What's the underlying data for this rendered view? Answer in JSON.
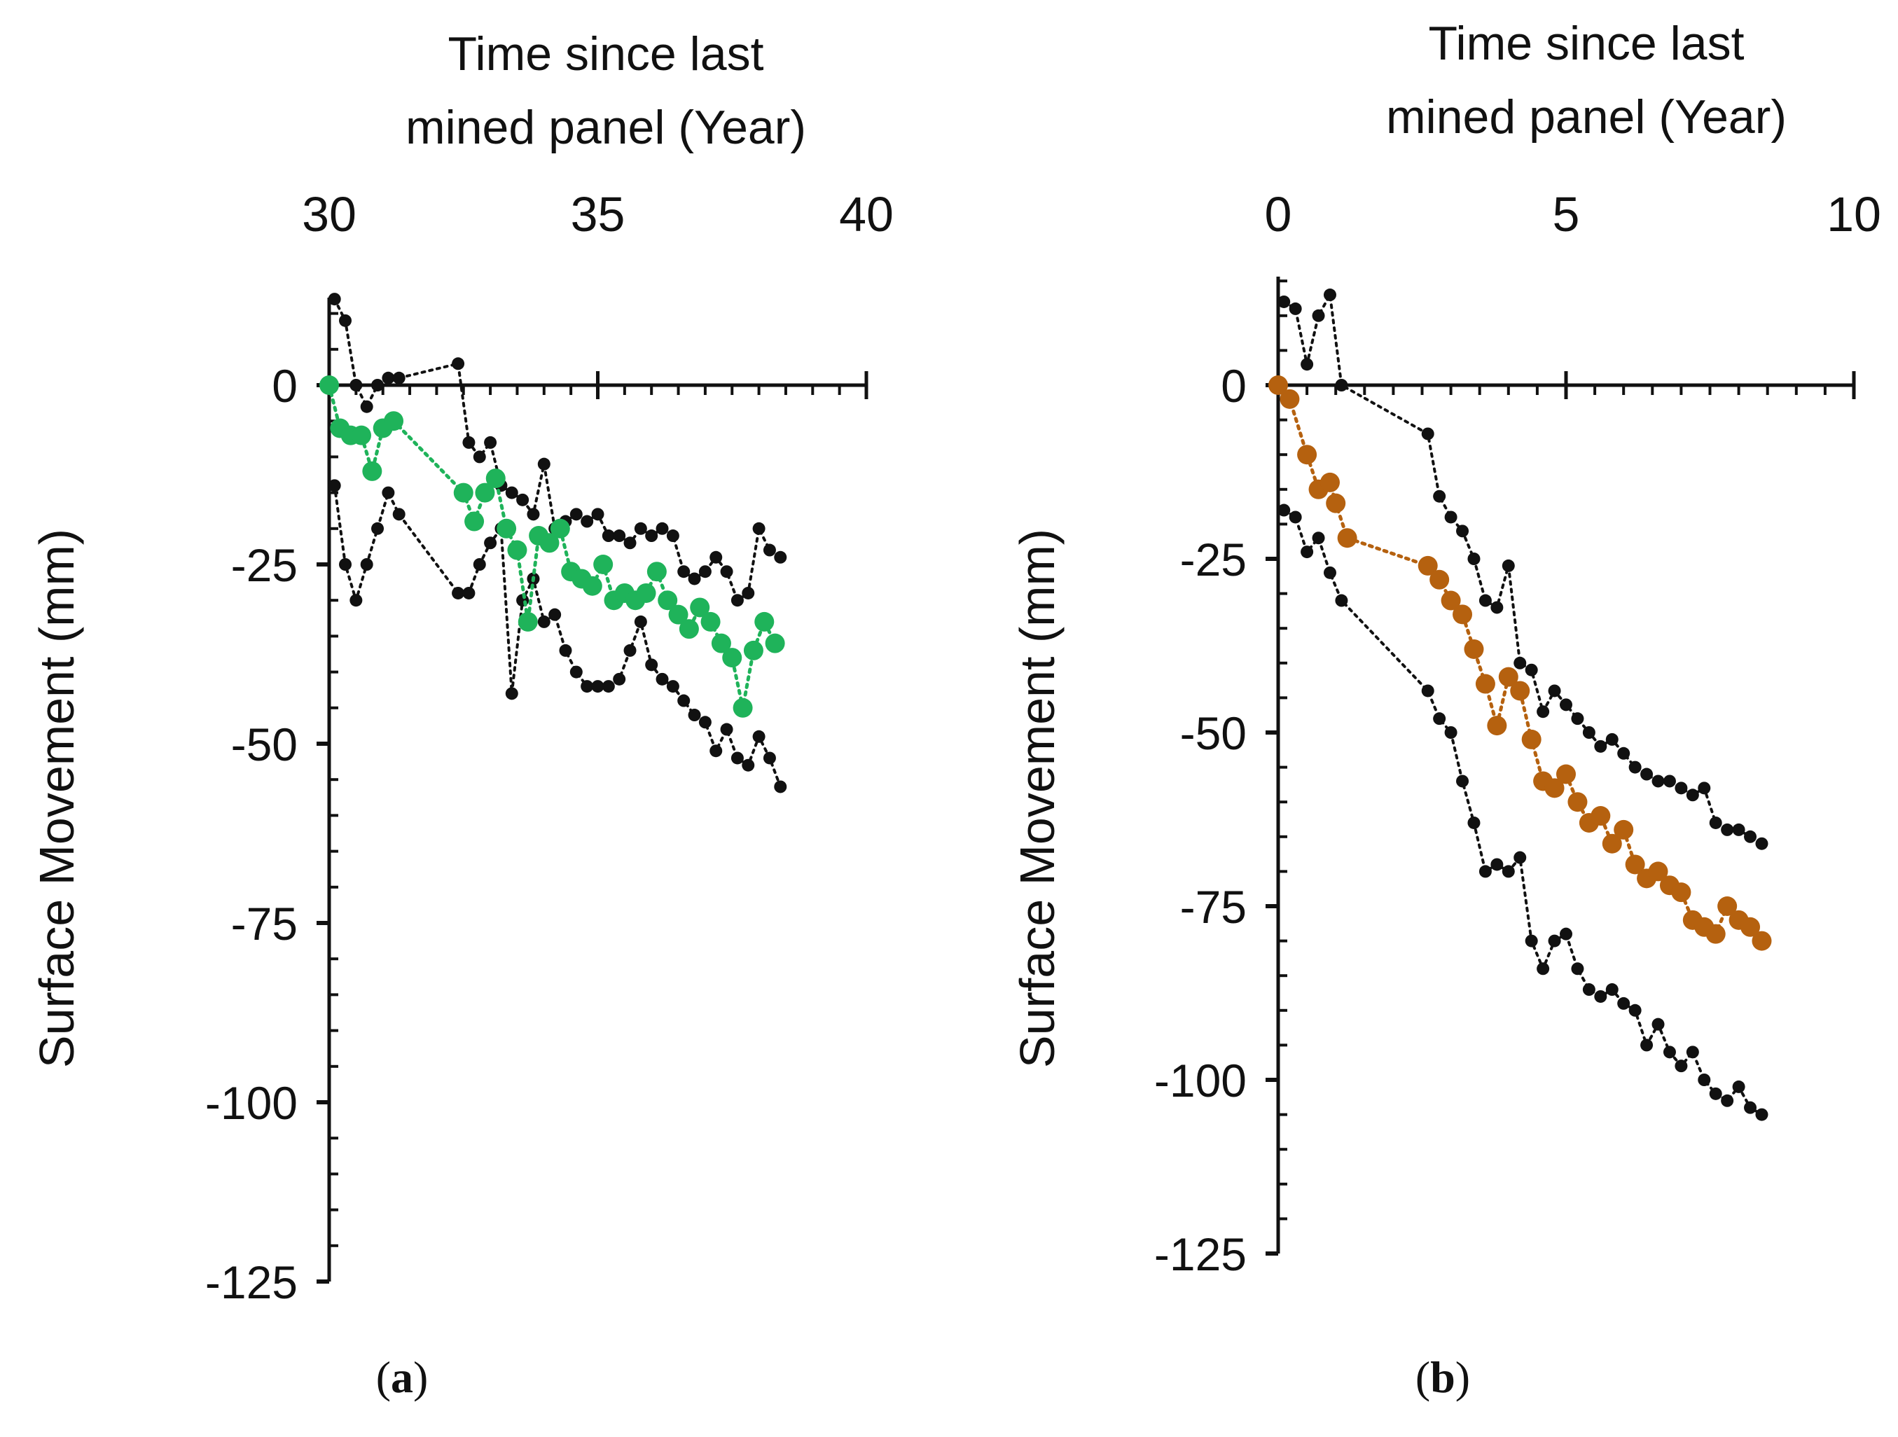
{
  "figure": {
    "caption_a_letter": "a",
    "caption_b_letter": "b"
  },
  "colors": {
    "axis": "#111111",
    "envelope": "#111111",
    "panel_a_series": "#1fb35a",
    "panel_b_series": "#b5610f"
  },
  "chart_data": [
    {
      "id": "a",
      "type": "line",
      "title": "",
      "xlabel_line1": "Time since last",
      "xlabel_line2": "mined panel (Year)",
      "ylabel": "Surface  Movement  (mm)",
      "xlim": [
        30,
        40
      ],
      "ylim": [
        -125,
        10
      ],
      "xticks": [
        30,
        35,
        40
      ],
      "xtick_labels": [
        "30",
        "35",
        "40"
      ],
      "yticks": [
        0,
        -25,
        -50,
        -75,
        -100,
        -125
      ],
      "ytick_labels": [
        "0",
        "-25",
        "-50",
        "-75",
        "-100",
        "-125"
      ],
      "series": [
        {
          "name": "upper envelope",
          "style": "black-dotted",
          "x": [
            30.1,
            30.3,
            30.5,
            30.7,
            30.9,
            31.1,
            31.3,
            32.4,
            32.6,
            32.8,
            33.0,
            33.2,
            33.4,
            33.6,
            33.8,
            34.0,
            34.2,
            34.4,
            34.6,
            34.8,
            35.0,
            35.2,
            35.4,
            35.6,
            35.8,
            36.0,
            36.2,
            36.4,
            36.6,
            36.8,
            37.0,
            37.2,
            37.4,
            37.6,
            37.8,
            38.0,
            38.2,
            38.4
          ],
          "y": [
            12,
            9,
            0,
            -3,
            0,
            1,
            1,
            3,
            -8,
            -10,
            -8,
            -14,
            -15,
            -16,
            -18,
            -11,
            -20,
            -19,
            -18,
            -19,
            -18,
            -21,
            -21,
            -22,
            -20,
            -21,
            -20,
            -21,
            -26,
            -27,
            -26,
            -24,
            -26,
            -30,
            -29,
            -20,
            -23,
            -24
          ]
        },
        {
          "name": "lower envelope",
          "style": "black-dotted",
          "x": [
            30.1,
            30.3,
            30.5,
            30.7,
            30.9,
            31.1,
            31.3,
            32.4,
            32.6,
            32.8,
            33.0,
            33.2,
            33.4,
            33.6,
            33.8,
            34.0,
            34.2,
            34.4,
            34.6,
            34.8,
            35.0,
            35.2,
            35.4,
            35.6,
            35.8,
            36.0,
            36.2,
            36.4,
            36.6,
            36.8,
            37.0,
            37.2,
            37.4,
            37.6,
            37.8,
            38.0,
            38.2,
            38.4
          ],
          "y": [
            -14,
            -25,
            -30,
            -25,
            -20,
            -15,
            -18,
            -29,
            -29,
            -25,
            -22,
            -20,
            -43,
            -30,
            -27,
            -33,
            -32,
            -37,
            -40,
            -42,
            -42,
            -42,
            -41,
            -37,
            -33,
            -39,
            -41,
            -42,
            -44,
            -46,
            -47,
            -51,
            -48,
            -52,
            -53,
            -49,
            -52,
            -56
          ]
        },
        {
          "name": "mean",
          "style": "color-dotted",
          "x": [
            30.0,
            30.2,
            30.4,
            30.6,
            30.8,
            31.0,
            31.2,
            32.5,
            32.7,
            32.9,
            33.1,
            33.3,
            33.5,
            33.7,
            33.9,
            34.1,
            34.3,
            34.5,
            34.7,
            34.9,
            35.1,
            35.3,
            35.5,
            35.7,
            35.9,
            36.1,
            36.3,
            36.5,
            36.7,
            36.9,
            37.1,
            37.3,
            37.5,
            37.7,
            37.9,
            38.1,
            38.3
          ],
          "y": [
            0,
            -6,
            -7,
            -7,
            -12,
            -6,
            -5,
            -15,
            -19,
            -15,
            -13,
            -20,
            -23,
            -33,
            -21,
            -22,
            -20,
            -26,
            -27,
            -28,
            -25,
            -30,
            -29,
            -30,
            -29,
            -26,
            -30,
            -32,
            -34,
            -31,
            -33,
            -36,
            -38,
            -45,
            -37,
            -33,
            -36
          ]
        }
      ]
    },
    {
      "id": "b",
      "type": "line",
      "title": "",
      "xlabel_line1": "Time since last",
      "xlabel_line2": "mined panel (Year)",
      "ylabel": "Surface  Movement  (mm)",
      "xlim": [
        0,
        10
      ],
      "ylim": [
        -125,
        15
      ],
      "xticks": [
        0,
        5,
        10
      ],
      "xtick_labels": [
        "0",
        "5",
        "10"
      ],
      "yticks": [
        0,
        -25,
        -50,
        -75,
        -100,
        -125
      ],
      "ytick_labels": [
        "0",
        "-25",
        "-50",
        "-75",
        "-100",
        "-125"
      ],
      "series": [
        {
          "name": "upper envelope",
          "style": "black-dotted",
          "x": [
            0.1,
            0.3,
            0.5,
            0.7,
            0.9,
            1.1,
            2.6,
            2.8,
            3.0,
            3.2,
            3.4,
            3.6,
            3.8,
            4.0,
            4.2,
            4.4,
            4.6,
            4.8,
            5.0,
            5.2,
            5.4,
            5.6,
            5.8,
            6.0,
            6.2,
            6.4,
            6.6,
            6.8,
            7.0,
            7.2,
            7.4,
            7.6,
            7.8,
            8.0,
            8.2,
            8.4
          ],
          "y": [
            12,
            11,
            3,
            10,
            13,
            0,
            -7,
            -16,
            -19,
            -21,
            -25,
            -31,
            -32,
            -26,
            -40,
            -41,
            -47,
            -44,
            -46,
            -48,
            -50,
            -52,
            -51,
            -53,
            -55,
            -56,
            -57,
            -57,
            -58,
            -59,
            -58,
            -63,
            -64,
            -64,
            -65,
            -66
          ]
        },
        {
          "name": "lower envelope",
          "style": "black-dotted",
          "x": [
            0.1,
            0.3,
            0.5,
            0.7,
            0.9,
            1.1,
            2.6,
            2.8,
            3.0,
            3.2,
            3.4,
            3.6,
            3.8,
            4.0,
            4.2,
            4.4,
            4.6,
            4.8,
            5.0,
            5.2,
            5.4,
            5.6,
            5.8,
            6.0,
            6.2,
            6.4,
            6.6,
            6.8,
            7.0,
            7.2,
            7.4,
            7.6,
            7.8,
            8.0,
            8.2,
            8.4
          ],
          "y": [
            -18,
            -19,
            -24,
            -22,
            -27,
            -31,
            -44,
            -48,
            -50,
            -57,
            -63,
            -70,
            -69,
            -70,
            -68,
            -80,
            -84,
            -80,
            -79,
            -84,
            -87,
            -88,
            -87,
            -89,
            -90,
            -95,
            -92,
            -96,
            -98,
            -96,
            -100,
            -102,
            -103,
            -101,
            -104,
            -105
          ]
        },
        {
          "name": "mean",
          "style": "color-dotted",
          "x": [
            0.0,
            0.2,
            0.5,
            0.7,
            0.9,
            1.0,
            1.2,
            2.6,
            2.8,
            3.0,
            3.2,
            3.4,
            3.6,
            3.8,
            4.0,
            4.2,
            4.4,
            4.6,
            4.8,
            5.0,
            5.2,
            5.4,
            5.6,
            5.8,
            6.0,
            6.2,
            6.4,
            6.6,
            6.8,
            7.0,
            7.2,
            7.4,
            7.6,
            7.8,
            8.0,
            8.2,
            8.4
          ],
          "y": [
            0,
            -2,
            -10,
            -15,
            -14,
            -17,
            -22,
            -26,
            -28,
            -31,
            -33,
            -38,
            -43,
            -49,
            -42,
            -44,
            -51,
            -57,
            -58,
            -56,
            -60,
            -63,
            -62,
            -66,
            -64,
            -69,
            -71,
            -70,
            -72,
            -73,
            -77,
            -78,
            -79,
            -75,
            -77,
            -78,
            -80
          ]
        }
      ]
    }
  ]
}
